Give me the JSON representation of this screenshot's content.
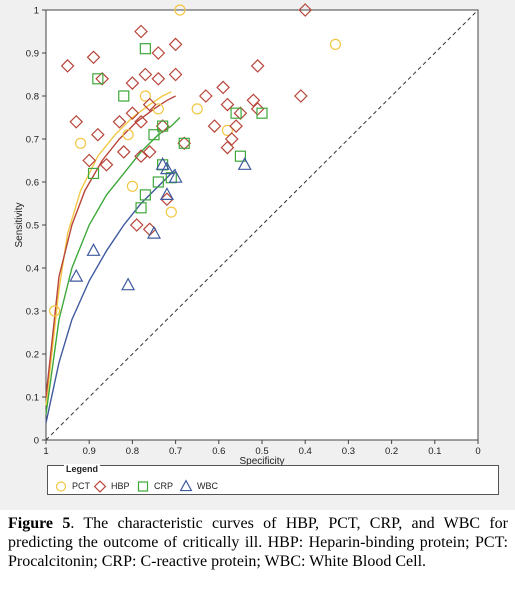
{
  "chart_data": {
    "type": "scatter",
    "xlabel": "Specificity",
    "ylabel": "Sensitivity",
    "x_reversed": true,
    "xlim": [
      1,
      0
    ],
    "ylim": [
      0,
      1
    ],
    "x_ticks": [
      1,
      0.9,
      0.8,
      0.7,
      0.6,
      0.5,
      0.4,
      0.3,
      0.2,
      0.1,
      0
    ],
    "x_tick_labels": [
      "1",
      "0.9",
      "0.8",
      "0.7",
      "0.6",
      "0.5",
      "0.4",
      "0.3",
      "0.2",
      "0.1",
      "0"
    ],
    "y_ticks": [
      0,
      0.1,
      0.2,
      0.3,
      0.4,
      0.5,
      0.6,
      0.7,
      0.8,
      0.9,
      1
    ],
    "y_tick_labels": [
      "0",
      "0.1",
      "0.2",
      "0.3",
      "0.4",
      "0.5",
      "0.6",
      "0.7",
      "0.8",
      "0.9",
      "1"
    ],
    "diagonal": {
      "from": [
        1,
        0
      ],
      "to": [
        0,
        1
      ],
      "style": "dashed"
    },
    "series": [
      {
        "name": "PCT",
        "marker": "circle",
        "color": "#f2c744",
        "points": [
          [
            0.69,
            1
          ],
          [
            0.33,
            0.92
          ],
          [
            0.98,
            0.3
          ],
          [
            0.92,
            0.69
          ],
          [
            0.8,
            0.59
          ],
          [
            0.81,
            0.71
          ],
          [
            0.77,
            0.8
          ],
          [
            0.74,
            0.77
          ],
          [
            0.71,
            0.53
          ],
          [
            0.65,
            0.77
          ],
          [
            0.58,
            0.72
          ]
        ],
        "curve": [
          [
            1,
            0.08
          ],
          [
            0.97,
            0.35
          ],
          [
            0.95,
            0.48
          ],
          [
            0.92,
            0.58
          ],
          [
            0.88,
            0.66
          ],
          [
            0.84,
            0.71
          ],
          [
            0.8,
            0.75
          ],
          [
            0.76,
            0.78
          ],
          [
            0.73,
            0.8
          ],
          [
            0.71,
            0.81
          ]
        ]
      },
      {
        "name": "HBP",
        "marker": "diamond",
        "color": "#b8453a",
        "points": [
          [
            0.4,
            1
          ],
          [
            0.78,
            0.95
          ],
          [
            0.74,
            0.9
          ],
          [
            0.7,
            0.92
          ],
          [
            0.95,
            0.87
          ],
          [
            0.89,
            0.89
          ],
          [
            0.87,
            0.84
          ],
          [
            0.8,
            0.83
          ],
          [
            0.77,
            0.85
          ],
          [
            0.74,
            0.84
          ],
          [
            0.7,
            0.85
          ],
          [
            0.63,
            0.8
          ],
          [
            0.59,
            0.82
          ],
          [
            0.51,
            0.87
          ],
          [
            0.41,
            0.8
          ],
          [
            0.52,
            0.79
          ],
          [
            0.58,
            0.78
          ],
          [
            0.55,
            0.76
          ],
          [
            0.51,
            0.77
          ],
          [
            0.93,
            0.74
          ],
          [
            0.88,
            0.71
          ],
          [
            0.83,
            0.74
          ],
          [
            0.8,
            0.76
          ],
          [
            0.78,
            0.74
          ],
          [
            0.76,
            0.78
          ],
          [
            0.61,
            0.73
          ],
          [
            0.57,
            0.7
          ],
          [
            0.56,
            0.73
          ],
          [
            0.73,
            0.73
          ],
          [
            0.68,
            0.69
          ],
          [
            0.9,
            0.65
          ],
          [
            0.86,
            0.64
          ],
          [
            0.82,
            0.67
          ],
          [
            0.78,
            0.66
          ],
          [
            0.76,
            0.67
          ],
          [
            0.79,
            0.5
          ],
          [
            0.72,
            0.56
          ],
          [
            0.76,
            0.49
          ],
          [
            0.58,
            0.68
          ]
        ],
        "curve": [
          [
            1,
            0.1
          ],
          [
            0.97,
            0.38
          ],
          [
            0.94,
            0.5
          ],
          [
            0.91,
            0.58
          ],
          [
            0.87,
            0.65
          ],
          [
            0.83,
            0.7
          ],
          [
            0.79,
            0.74
          ],
          [
            0.75,
            0.77
          ],
          [
            0.72,
            0.79
          ],
          [
            0.7,
            0.8
          ]
        ]
      },
      {
        "name": "CRP",
        "marker": "square",
        "color": "#3ea83a",
        "points": [
          [
            0.77,
            0.91
          ],
          [
            0.88,
            0.84
          ],
          [
            0.82,
            0.8
          ],
          [
            0.75,
            0.71
          ],
          [
            0.73,
            0.73
          ],
          [
            0.68,
            0.69
          ],
          [
            0.56,
            0.76
          ],
          [
            0.5,
            0.76
          ],
          [
            0.89,
            0.62
          ],
          [
            0.77,
            0.57
          ],
          [
            0.74,
            0.6
          ],
          [
            0.78,
            0.54
          ],
          [
            0.71,
            0.61
          ],
          [
            0.55,
            0.66
          ],
          [
            0.73,
            0.64
          ]
        ],
        "curve": [
          [
            1,
            0.06
          ],
          [
            0.97,
            0.28
          ],
          [
            0.94,
            0.4
          ],
          [
            0.9,
            0.5
          ],
          [
            0.86,
            0.57
          ],
          [
            0.82,
            0.62
          ],
          [
            0.78,
            0.67
          ],
          [
            0.74,
            0.71
          ],
          [
            0.71,
            0.73
          ],
          [
            0.69,
            0.75
          ]
        ]
      },
      {
        "name": "WBC",
        "marker": "triangle",
        "color": "#3f5a9e",
        "points": [
          [
            0.93,
            0.38
          ],
          [
            0.89,
            0.44
          ],
          [
            0.81,
            0.36
          ],
          [
            0.75,
            0.48
          ],
          [
            0.73,
            0.64
          ],
          [
            0.72,
            0.63
          ],
          [
            0.7,
            0.61
          ],
          [
            0.72,
            0.57
          ],
          [
            0.54,
            0.64
          ]
        ],
        "curve": [
          [
            1,
            0.04
          ],
          [
            0.97,
            0.18
          ],
          [
            0.94,
            0.28
          ],
          [
            0.9,
            0.37
          ],
          [
            0.86,
            0.44
          ],
          [
            0.82,
            0.5
          ],
          [
            0.78,
            0.55
          ],
          [
            0.74,
            0.59
          ],
          [
            0.71,
            0.62
          ],
          [
            0.7,
            0.63
          ]
        ]
      }
    ],
    "legend": {
      "title": "Legend",
      "position": "bottom"
    }
  },
  "caption": {
    "label": "Figure 5",
    "text": ". The characteristic curves of HBP, PCT, CRP, and WBC for predicting the outcome of critically ill. HBP: Heparin-binding protein; PCT: Procalcitonin; CRP: C-reactive protein; WBC: White Blood Cell."
  }
}
